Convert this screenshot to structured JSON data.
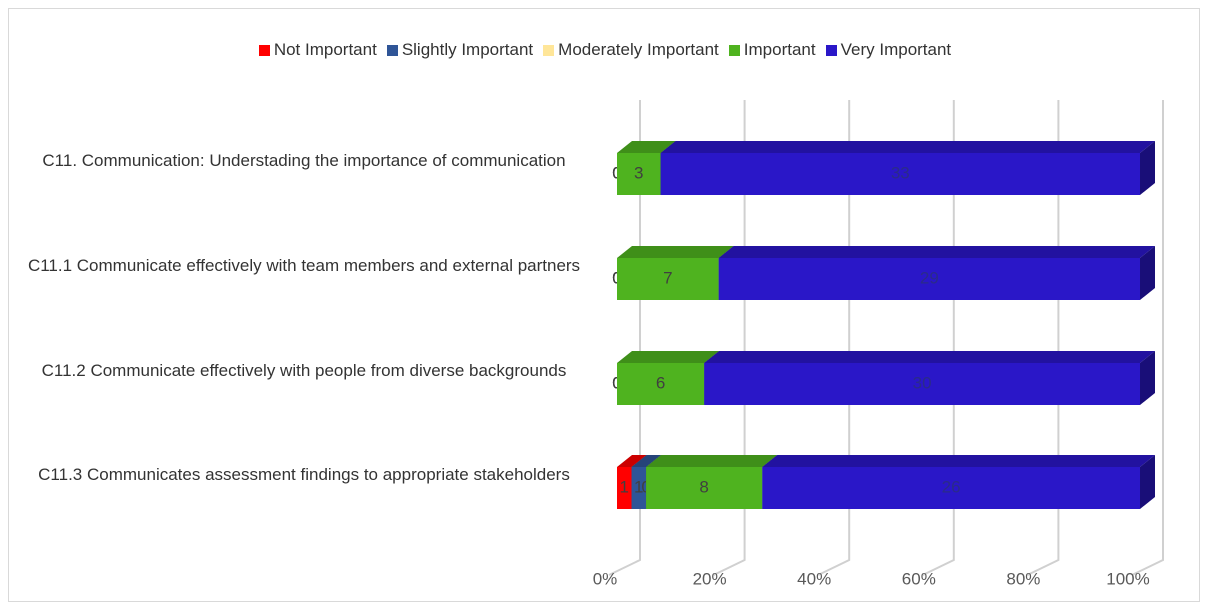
{
  "chart_data": {
    "type": "bar_stacked_100_3d",
    "categories": [
      "C11. Communication: Understading the importance of communication",
      "C11.1 Communicate effectively with team members and external partners",
      "C11.2 Communicate effectively with people from diverse backgrounds",
      "C11.3 Communicates assessment findings to appropriate stakeholders"
    ],
    "series": [
      {
        "name": "Not Important",
        "color": "#ff0000",
        "values": [
          0,
          0,
          0,
          1
        ]
      },
      {
        "name": "Slightly Important",
        "color": "#2f5597",
        "values": [
          0,
          0,
          0,
          1
        ]
      },
      {
        "name": "Moderately Important",
        "color": "#ffe699",
        "values": [
          0,
          0,
          0,
          0
        ]
      },
      {
        "name": "Important",
        "color": "#4fb31f",
        "values": [
          3,
          7,
          6,
          8
        ]
      },
      {
        "name": "Very Important",
        "color": "#2a17c8",
        "values": [
          33,
          29,
          30,
          26
        ]
      }
    ],
    "xlim": [
      0,
      100
    ],
    "xticks": [
      {
        "value": 0,
        "label": "0%"
      },
      {
        "value": 20,
        "label": "20%"
      },
      {
        "value": 40,
        "label": "40%"
      },
      {
        "value": 60,
        "label": "60%"
      },
      {
        "value": 80,
        "label": "80%"
      },
      {
        "value": 100,
        "label": "100%"
      }
    ],
    "grid": true,
    "legend": "top"
  }
}
